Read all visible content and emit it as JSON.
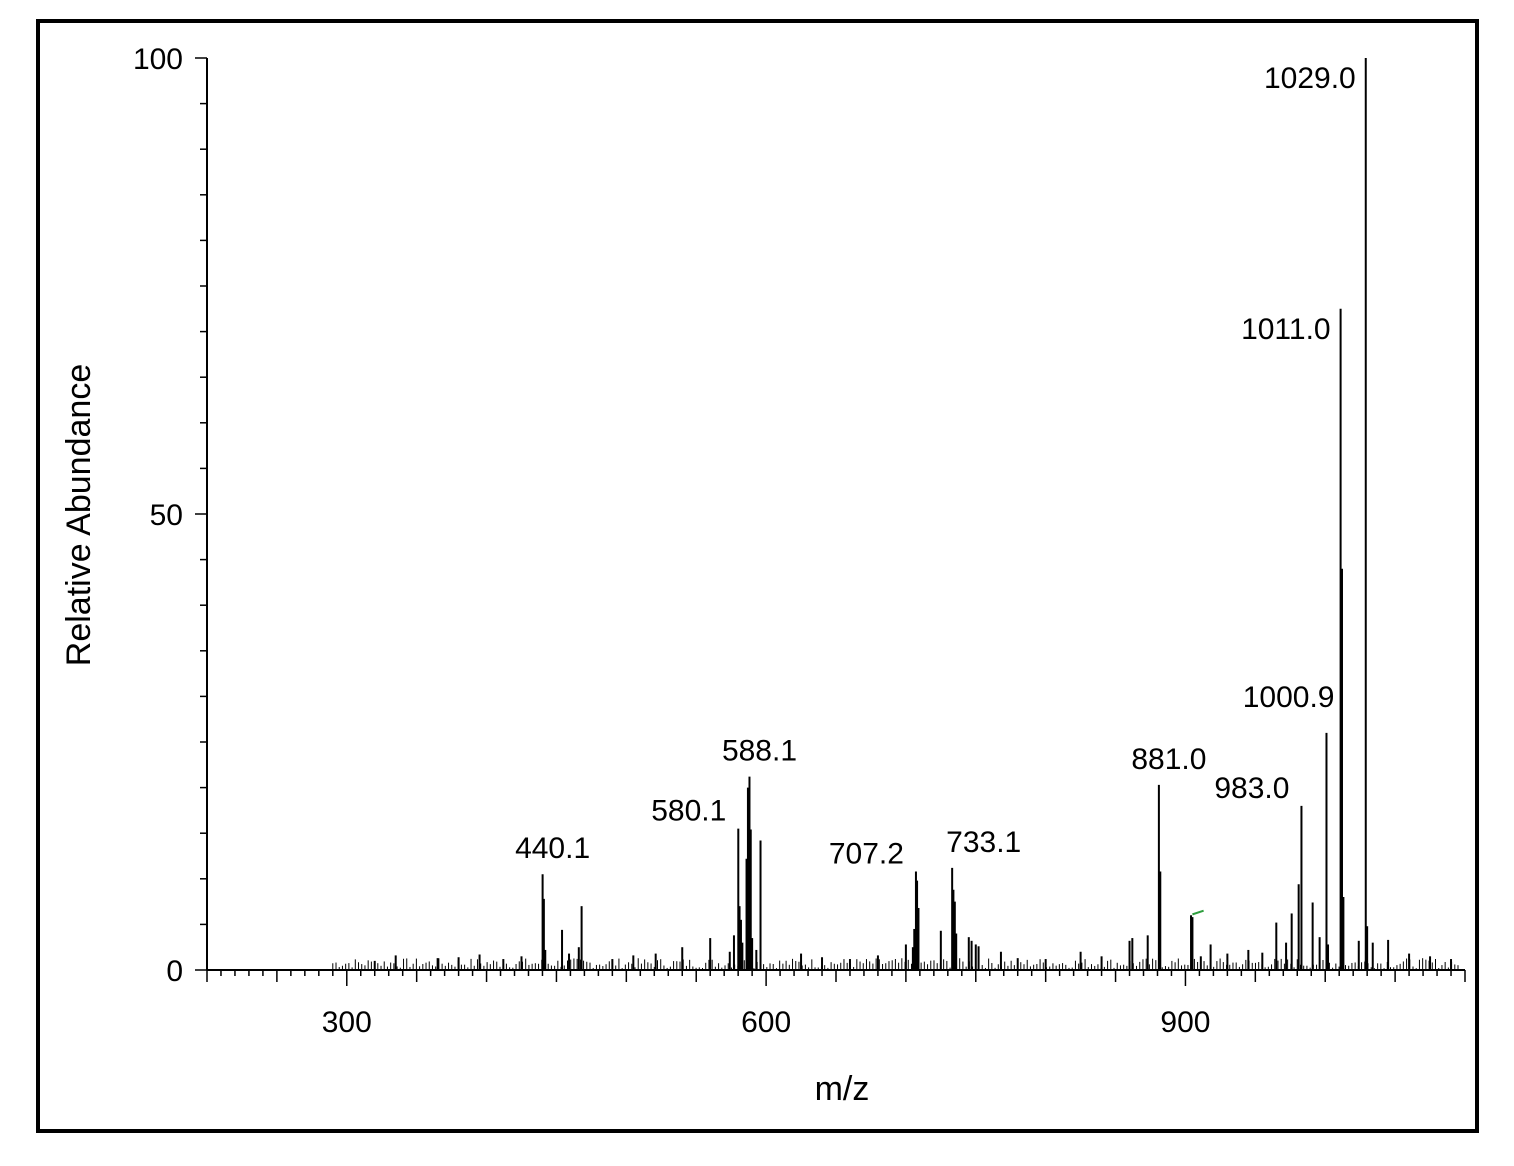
{
  "chart_data": {
    "type": "bar",
    "title": "",
    "xlabel": "m/z",
    "ylabel": "Relative Abundance",
    "xlim": [
      200,
      1100
    ],
    "ylim": [
      0,
      100
    ],
    "x_ticks": [
      300,
      600,
      900
    ],
    "y_ticks": [
      0,
      50,
      100
    ],
    "grid": false,
    "labeled_peaks": [
      {
        "mz": 440.1,
        "intensity": 10.5,
        "label": "440.1"
      },
      {
        "mz": 580.1,
        "intensity": 15.5,
        "label": "580.1"
      },
      {
        "mz": 588.1,
        "intensity": 21.2,
        "label": "588.1"
      },
      {
        "mz": 707.2,
        "intensity": 10.8,
        "label": "707.2"
      },
      {
        "mz": 733.1,
        "intensity": 11.2,
        "label": "733.1"
      },
      {
        "mz": 881.0,
        "intensity": 20.3,
        "label": "881.0"
      },
      {
        "mz": 983.0,
        "intensity": 18.0,
        "label": "983.0"
      },
      {
        "mz": 1000.9,
        "intensity": 26.0,
        "label": "1000.9"
      },
      {
        "mz": 1011.0,
        "intensity": 72.5,
        "label": "1011.0"
      },
      {
        "mz": 1029.0,
        "intensity": 100,
        "label": "1029.0"
      }
    ],
    "other_peaks": [
      {
        "mz": 441.0,
        "intensity": 7.8
      },
      {
        "mz": 442.0,
        "intensity": 2.2
      },
      {
        "mz": 454.0,
        "intensity": 4.4
      },
      {
        "mz": 468.0,
        "intensity": 7.0
      },
      {
        "mz": 466.0,
        "intensity": 2.5
      },
      {
        "mz": 459.0,
        "intensity": 1.8
      },
      {
        "mz": 560.0,
        "intensity": 3.5
      },
      {
        "mz": 581.0,
        "intensity": 7.0
      },
      {
        "mz": 582.0,
        "intensity": 5.5
      },
      {
        "mz": 583.0,
        "intensity": 3.0
      },
      {
        "mz": 577.0,
        "intensity": 3.8
      },
      {
        "mz": 574.0,
        "intensity": 2.0
      },
      {
        "mz": 596.0,
        "intensity": 14.2
      },
      {
        "mz": 586.0,
        "intensity": 12.2
      },
      {
        "mz": 587.0,
        "intensity": 20.0
      },
      {
        "mz": 589.0,
        "intensity": 15.4
      },
      {
        "mz": 590.0,
        "intensity": 3.5
      },
      {
        "mz": 593.0,
        "intensity": 2.2
      },
      {
        "mz": 708.0,
        "intensity": 9.8
      },
      {
        "mz": 709.0,
        "intensity": 6.8
      },
      {
        "mz": 706.0,
        "intensity": 4.5
      },
      {
        "mz": 705.0,
        "intensity": 2.5
      },
      {
        "mz": 725.0,
        "intensity": 4.3
      },
      {
        "mz": 734.0,
        "intensity": 8.8
      },
      {
        "mz": 735.0,
        "intensity": 7.5
      },
      {
        "mz": 736.0,
        "intensity": 4.0
      },
      {
        "mz": 745.0,
        "intensity": 3.6
      },
      {
        "mz": 747.0,
        "intensity": 3.2
      },
      {
        "mz": 750.0,
        "intensity": 2.8
      },
      {
        "mz": 752.0,
        "intensity": 2.6
      },
      {
        "mz": 700.0,
        "intensity": 2.8
      },
      {
        "mz": 768.0,
        "intensity": 2.0
      },
      {
        "mz": 882.0,
        "intensity": 10.8
      },
      {
        "mz": 860.0,
        "intensity": 3.2
      },
      {
        "mz": 862.0,
        "intensity": 3.5
      },
      {
        "mz": 873.0,
        "intensity": 3.8
      },
      {
        "mz": 904.0,
        "intensity": 6.0
      },
      {
        "mz": 905.0,
        "intensity": 5.8
      },
      {
        "mz": 911.0,
        "intensity": 1.5
      },
      {
        "mz": 918.0,
        "intensity": 2.8
      },
      {
        "mz": 965.0,
        "intensity": 5.2
      },
      {
        "mz": 972.0,
        "intensity": 3.0
      },
      {
        "mz": 976.0,
        "intensity": 6.2
      },
      {
        "mz": 981.0,
        "intensity": 9.4
      },
      {
        "mz": 991.0,
        "intensity": 7.4
      },
      {
        "mz": 996.0,
        "intensity": 3.6
      },
      {
        "mz": 1012.0,
        "intensity": 44.0
      },
      {
        "mz": 1013.0,
        "intensity": 8.0
      },
      {
        "mz": 1002.0,
        "intensity": 2.8
      },
      {
        "mz": 1024.0,
        "intensity": 3.2
      },
      {
        "mz": 1030.0,
        "intensity": 4.8
      },
      {
        "mz": 1034.0,
        "intensity": 3.0
      },
      {
        "mz": 1045.0,
        "intensity": 3.3
      },
      {
        "mz": 1060.0,
        "intensity": 1.8
      },
      {
        "mz": 1075.0,
        "intensity": 1.5
      },
      {
        "mz": 1090.0,
        "intensity": 1.2
      },
      {
        "mz": 540.0,
        "intensity": 2.5
      },
      {
        "mz": 521.0,
        "intensity": 1.8
      },
      {
        "mz": 505.0,
        "intensity": 1.6
      },
      {
        "mz": 490.0,
        "intensity": 1.2
      },
      {
        "mz": 425.0,
        "intensity": 1.5
      },
      {
        "mz": 412.0,
        "intensity": 1.2
      },
      {
        "mz": 395.0,
        "intensity": 1.7
      },
      {
        "mz": 380.0,
        "intensity": 1.4
      },
      {
        "mz": 365.0,
        "intensity": 1.3
      },
      {
        "mz": 335.0,
        "intensity": 1.6
      },
      {
        "mz": 320.0,
        "intensity": 1.0
      },
      {
        "mz": 625.0,
        "intensity": 1.8
      },
      {
        "mz": 640.0,
        "intensity": 1.4
      },
      {
        "mz": 660.0,
        "intensity": 1.2
      },
      {
        "mz": 680.0,
        "intensity": 1.6
      },
      {
        "mz": 780.0,
        "intensity": 1.3
      },
      {
        "mz": 800.0,
        "intensity": 1.2
      },
      {
        "mz": 825.0,
        "intensity": 2.0
      },
      {
        "mz": 840.0,
        "intensity": 1.5
      },
      {
        "mz": 930.0,
        "intensity": 1.8
      },
      {
        "mz": 945.0,
        "intensity": 2.2
      },
      {
        "mz": 955.0,
        "intensity": 1.9
      }
    ],
    "annotation_color": "#2e9e3e"
  }
}
